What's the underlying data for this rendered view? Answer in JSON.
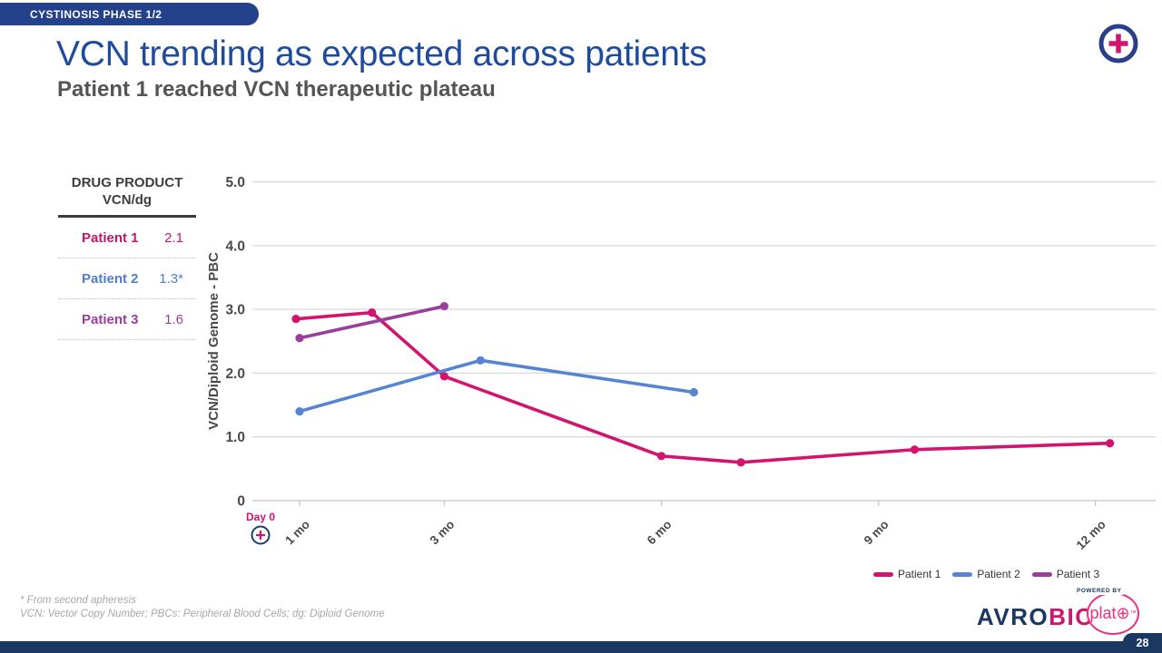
{
  "badge": {
    "label": "CYSTINOSIS PHASE 1/2"
  },
  "header": {
    "title": "VCN trending as expected across patients",
    "subtitle": "Patient 1 reached VCN therapeutic plateau"
  },
  "icons": {
    "corner_icon": "circle-plus",
    "day0_icon": "circle-plus"
  },
  "colors": {
    "navy": "#1B3863",
    "badge_navy": "#24418C",
    "title_blue": "#1E4B9C",
    "magenta": "#D2146E",
    "blue": "#5585D2",
    "purple": "#9B3D9B",
    "grid": "#DBDBDB",
    "axis_text": "#4A4A4A"
  },
  "vcn_table": {
    "header_line1": "DRUG PRODUCT",
    "header_line2": "VCN/dg",
    "rows": [
      {
        "label": "Patient 1",
        "value": "2.1",
        "color": "#C4156E"
      },
      {
        "label": "Patient 2",
        "value": "1.3*",
        "color": "#4F7FCB"
      },
      {
        "label": "Patient 3",
        "value": "1.6",
        "color": "#9B3D9B"
      }
    ]
  },
  "chart_data": {
    "type": "line",
    "title": "",
    "xlabel": "",
    "ylabel": "VCN/Diploid Genome - PBC",
    "ylim": [
      0,
      5
    ],
    "grid": true,
    "legend_position": "bottom-right",
    "x_unit": "months",
    "yticks": [
      {
        "label": "5.0",
        "value": 5
      },
      {
        "label": "4.0",
        "value": 4
      },
      {
        "label": "3.0",
        "value": 3
      },
      {
        "label": "2.0",
        "value": 2
      },
      {
        "label": "1.0",
        "value": 1
      },
      {
        "label": "0",
        "value": 0
      }
    ],
    "xticks": [
      {
        "label": "1 mo",
        "month": 1
      },
      {
        "label": "3 mo",
        "month": 3
      },
      {
        "label": "6 mo",
        "month": 6
      },
      {
        "label": "9 mo",
        "month": 9
      },
      {
        "label": "12 mo",
        "month": 12
      }
    ],
    "day0_label": "Day 0",
    "series": [
      {
        "name": "Patient 1",
        "color": "#D2146E",
        "points": [
          {
            "month": 0.95,
            "value": 2.85
          },
          {
            "month": 2.0,
            "value": 2.95
          },
          {
            "month": 3.0,
            "value": 1.95
          },
          {
            "month": 6.0,
            "value": 0.7
          },
          {
            "month": 7.1,
            "value": 0.6
          },
          {
            "month": 9.5,
            "value": 0.8
          },
          {
            "month": 12.2,
            "value": 0.9
          }
        ]
      },
      {
        "name": "Patient 2",
        "color": "#5585D2",
        "points": [
          {
            "month": 1.0,
            "value": 1.4
          },
          {
            "month": 3.5,
            "value": 2.2
          },
          {
            "month": 6.45,
            "value": 1.7
          }
        ]
      },
      {
        "name": "Patient 3",
        "color": "#9B3D9B",
        "points": [
          {
            "month": 1.0,
            "value": 2.55
          },
          {
            "month": 3.0,
            "value": 3.05
          }
        ]
      }
    ]
  },
  "footnotes": {
    "line1": "* From second apheresis",
    "line2": "VCN: Vector Copy Number; PBCs: Peripheral Blood Cells; dg: Diploid Genome"
  },
  "footer": {
    "logo_avro": "AVRO",
    "logo_bio": "BIO",
    "powered_by": "POWERED BY",
    "plato": "plat",
    "plato_o": "⊕",
    "plato_tm": "™",
    "page_number": "28"
  }
}
